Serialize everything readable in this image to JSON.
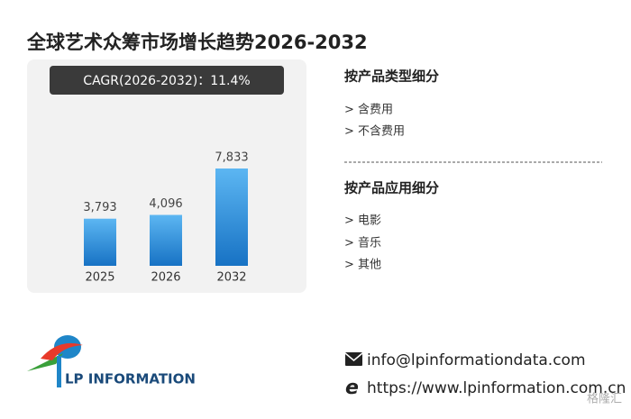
{
  "chart_data": {
    "type": "bar",
    "title": "全球艺术众筹市场增长趋势2026-2032",
    "annotation": "CAGR(2026-2032)：11.4%",
    "categories": [
      "2025",
      "2026",
      "2032"
    ],
    "values": [
      3793,
      4096,
      7833
    ],
    "value_labels": [
      "3,793",
      "4,096",
      "7,833"
    ]
  },
  "segments": [
    {
      "title": "按产品类型细分",
      "items": [
        "> 含费用",
        "> 不含费用"
      ]
    },
    {
      "title": "按产品应用细分",
      "items": [
        "> 电影",
        "> 音乐",
        "> 其他"
      ]
    }
  ],
  "logo": "LP INFORMATION",
  "contact": {
    "email": "info@lpinformationdata.com",
    "website": "https://www.lpinformation.com.cn"
  },
  "watermark": "格隆汇"
}
